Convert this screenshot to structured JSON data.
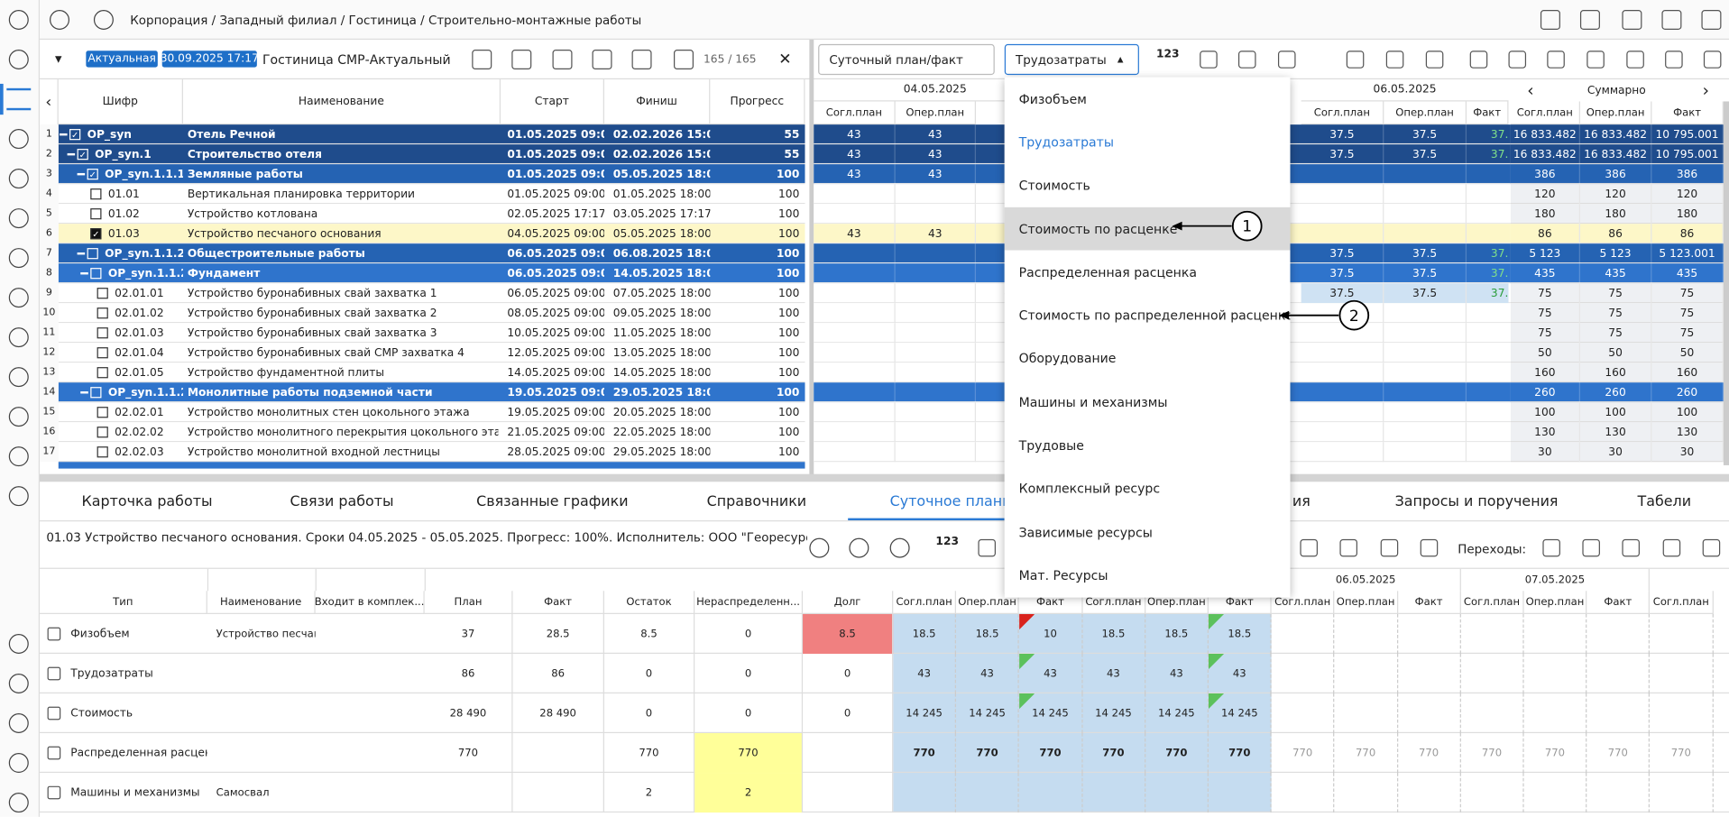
{
  "header": {
    "breadcrumb": "Корпорация / Западный филиал / Гостиница / Строительно-монтажные работы"
  },
  "toolbar": {
    "status": "Актуальная",
    "date": "30.09.2025 17:17",
    "plan": "Гостиница СМР-Актуальный",
    "counter": "165 / 165",
    "view": "Суточный план/факт",
    "metric": "Трудозатраты",
    "icon_label": "123"
  },
  "tasks": {
    "columns": [
      "Шифр",
      "Наименование",
      "Старт",
      "Финиш",
      "Прогресс"
    ],
    "rows": [
      [
        "1",
        "OP_syn",
        "Отель Речной",
        "01.05.2025 09:00",
        "02.02.2026 15:00",
        "55"
      ],
      [
        "2",
        "OP_syn.1",
        "Строительство отеля",
        "01.05.2025 09:00",
        "02.02.2026 15:00",
        "55"
      ],
      [
        "3",
        "OP_syn.1.1.1",
        "Земляные работы",
        "01.05.2025 09:00",
        "05.05.2025 18:00",
        "100"
      ],
      [
        "4",
        "01.01",
        "Вертикальная планировка территории",
        "01.05.2025 09:00",
        "01.05.2025 18:00",
        "100"
      ],
      [
        "5",
        "01.02",
        "Устройство котлована",
        "02.05.2025 17:17",
        "03.05.2025 17:17",
        "100"
      ],
      [
        "6",
        "01.03",
        "Устройство песчаного основания",
        "04.05.2025 09:00",
        "05.05.2025 18:00",
        "100"
      ],
      [
        "7",
        "OP_syn.1.1.2",
        "Общестроительные работы",
        "06.05.2025 09:00",
        "06.08.2025 18:00",
        "100"
      ],
      [
        "8",
        "OP_syn.1.1.2",
        "Фундамент",
        "06.05.2025 09:00",
        "14.05.2025 18:00",
        "100"
      ],
      [
        "9",
        "02.01.01",
        "Устройство буронабивных свай захватка 1",
        "06.05.2025 09:00",
        "07.05.2025 18:00",
        "100"
      ],
      [
        "10",
        "02.01.02",
        "Устройство буронабивных свай захватка 2",
        "08.05.2025 09:00",
        "09.05.2025 18:00",
        "100"
      ],
      [
        "11",
        "02.01.03",
        "Устройство буронабивных свай захватка 3",
        "10.05.2025 09:00",
        "11.05.2025 18:00",
        "100"
      ],
      [
        "12",
        "02.01.04",
        "Устройство буронабивных свай СМР захватка 4",
        "12.05.2025 09:00",
        "13.05.2025 18:00",
        "100"
      ],
      [
        "13",
        "02.01.05",
        "Устройство фундаментной плиты",
        "14.05.2025 09:00",
        "14.05.2025 18:00",
        "100"
      ],
      [
        "14",
        "OP_syn.1.1.2",
        "Монолитные работы подземной части",
        "19.05.2025 09:00",
        "29.05.2025 18:00",
        "100"
      ],
      [
        "15",
        "02.02.01",
        "Устройство монолитных стен цокольного этажа",
        "19.05.2025 09:00",
        "20.05.2025 18:00",
        "100"
      ],
      [
        "16",
        "02.02.02",
        "Устройство монолитного перекрытия цокольного этажа",
        "21.05.2025 09:00",
        "22.05.2025 18:00",
        "100"
      ],
      [
        "17",
        "02.02.03",
        "Устройство монолитной входной лестницы",
        "28.05.2025 09:00",
        "29.05.2025 18:00",
        "100"
      ]
    ]
  },
  "grid": {
    "dates": [
      "04.05.2025",
      "06.05.2025"
    ],
    "summary": "Суммарно",
    "columns": [
      "Согл.план",
      "Опер.план",
      "Факт"
    ],
    "rows": [
      [
        "43",
        "43",
        "37.5",
        "37.5",
        "37.5",
        "16 833.482",
        "16 833.482",
        "10 795.001"
      ],
      [
        "43",
        "43",
        "37.5",
        "37.5",
        "37.5",
        "16 833.482",
        "16 833.482",
        "10 795.001"
      ],
      [
        "43",
        "43",
        null,
        null,
        null,
        "386",
        "386",
        "386"
      ],
      [
        null,
        null,
        null,
        null,
        null,
        "120",
        "120",
        "120"
      ],
      [
        null,
        null,
        null,
        null,
        null,
        "180",
        "180",
        "180"
      ],
      [
        "43",
        "43",
        null,
        null,
        null,
        "86",
        "86",
        "86"
      ],
      [
        null,
        null,
        "37.5",
        "37.5",
        "37.5",
        "5 123",
        "5 123",
        "5 123.001"
      ],
      [
        null,
        null,
        "37.5",
        "37.5",
        "37.5",
        "435",
        "435",
        "435"
      ],
      [
        null,
        null,
        "37.5",
        "37.5",
        "37.5",
        "75",
        "75",
        "75"
      ],
      [
        null,
        null,
        null,
        null,
        null,
        "75",
        "75",
        "75"
      ],
      [
        null,
        null,
        null,
        null,
        null,
        "75",
        "75",
        "75"
      ],
      [
        null,
        null,
        null,
        null,
        null,
        "50",
        "50",
        "50"
      ],
      [
        null,
        null,
        null,
        null,
        null,
        "160",
        "160",
        "160"
      ],
      [
        null,
        null,
        null,
        null,
        null,
        "260",
        "260",
        "260"
      ],
      [
        null,
        null,
        null,
        null,
        null,
        "100",
        "100",
        "100"
      ],
      [
        null,
        null,
        null,
        null,
        null,
        "130",
        "130",
        "130"
      ],
      [
        null,
        null,
        null,
        null,
        null,
        "30",
        "30",
        "30"
      ]
    ]
  },
  "dropdown": {
    "items": [
      "Физобъем",
      "Трудозатраты",
      "Стоимость",
      "Стоимость по расценке",
      "Распределенная расценка",
      "Стоимость по распределенной расценке",
      "Оборудование",
      "Машины и механизмы",
      "Трудовые",
      "Комплексный ресурс",
      "Зависимые ресурсы",
      "Мат. Ресурсы"
    ]
  },
  "callouts": [
    "1",
    "2"
  ],
  "tabs": [
    "Карточка работы",
    "Связи работы",
    "Связанные графики",
    "Справочники",
    "Суточное планирование",
    "ия",
    "Запросы и поручения",
    "Табели"
  ],
  "details": {
    "info": "01.03 Устройство песчаного основания. Сроки 04.05.2025 - 05.05.2025. Прогресс: 100%. Исполнитель: ООО \"Георесурс\".",
    "transitions": "Переходы:"
  },
  "resources": {
    "columns": [
      "Тип",
      "Наименование",
      "Входит в комплек...",
      "План",
      "Факт",
      "Остаток",
      "Нераспределенн...",
      "Долг"
    ],
    "dates": [
      "04.05.2025",
      "06.05.2025",
      "07.05.2025"
    ],
    "rows": [
      {
        "type": "Физобъем",
        "name": "Устройство песчаного основания",
        "cells": [
          "37",
          "28.5",
          "8.5",
          "0",
          "8.5"
        ],
        "days": [
          "18.5",
          "18.5",
          "10",
          "18.5",
          "18.5",
          "18.5",
          null,
          null,
          null,
          null,
          null,
          null,
          null
        ]
      },
      {
        "type": "Трудозатраты",
        "name": null,
        "cells": [
          "86",
          "86",
          "0",
          "0",
          "0"
        ],
        "days": [
          "43",
          "43",
          "43",
          "43",
          "43",
          "43",
          null,
          null,
          null,
          null,
          null,
          null,
          null
        ]
      },
      {
        "type": "Стоимость",
        "name": null,
        "cells": [
          "28 490",
          "28 490",
          "0",
          "0",
          "0"
        ],
        "days": [
          "14 245",
          "14 245",
          "14 245",
          "14 245",
          "14 245",
          "14 245",
          null,
          null,
          null,
          null,
          null,
          null,
          null
        ]
      },
      {
        "type": "Распределенная расценка",
        "name": null,
        "cells": [
          "770",
          null,
          "770",
          "770",
          null
        ],
        "days": [
          "770",
          "770",
          "770",
          "770",
          "770",
          "770",
          "770",
          "770",
          "770",
          "770",
          "770",
          "770",
          "770"
        ]
      },
      {
        "type": "Машины и механизмы",
        "name": "Самосвал",
        "cells": [
          null,
          null,
          "2",
          "2",
          null
        ],
        "days": [
          null,
          null,
          null,
          null,
          null,
          null,
          null,
          null,
          null,
          null,
          null,
          null,
          null
        ]
      }
    ]
  }
}
